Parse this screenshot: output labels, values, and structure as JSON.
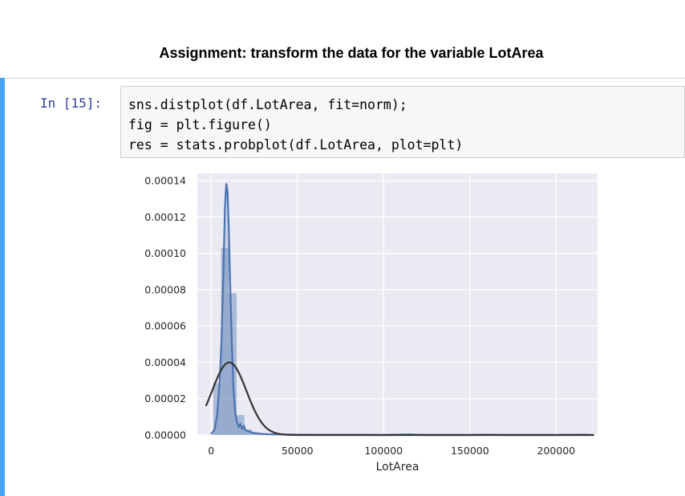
{
  "heading": "Assignment: transform the data for the variable LotArea",
  "cell": {
    "prompt": "In [15]:",
    "code_lines": [
      "sns.distplot(df.LotArea, fit=norm);",
      "fig = plt.figure()",
      "res = stats.probplot(df.LotArea, plot=plt)"
    ],
    "accent_color": "#42a5f5",
    "prompt_color": "#303f9f"
  },
  "chart_data": {
    "type": "bar",
    "title": "",
    "xlabel": "LotArea",
    "ylabel": "",
    "xlim": [
      -8000,
      224000
    ],
    "ylim": [
      0,
      0.000144
    ],
    "x_ticks": [
      0,
      50000,
      100000,
      150000,
      200000
    ],
    "x_tick_labels": [
      "0",
      "50000",
      "100000",
      "150000",
      "200000"
    ],
    "y_ticks": [
      0,
      2e-05,
      4e-05,
      6e-05,
      8e-05,
      0.0001,
      0.00012,
      0.00014
    ],
    "y_tick_labels": [
      "0.00000",
      "0.00002",
      "0.00004",
      "0.00006",
      "0.00008",
      "0.00010",
      "0.00012",
      "0.00014"
    ],
    "grid": true,
    "background": "#eaeaf2",
    "histogram": {
      "color": "#4c72b0",
      "bin_width": 4500,
      "bin_starts": [
        1300,
        5800,
        10300,
        14800,
        19300,
        23800,
        28300,
        32800,
        37300,
        41800,
        46300,
        50800,
        55300,
        59800,
        64300,
        68800,
        73300,
        77800,
        82300,
        86800,
        91300,
        95800,
        100300,
        104800,
        109300,
        113800,
        118300,
        122800,
        127300,
        131800,
        136300,
        140800,
        145300,
        149800,
        154300,
        158800,
        163300,
        167800,
        172300,
        176800,
        181300,
        185800,
        190300,
        194800,
        199300,
        203800,
        208300,
        212800
      ],
      "density": [
        2.85e-05,
        0.000103,
        7.8e-05,
        1.1e-05,
        3e-06,
        1.2e-06,
        6e-07,
        4e-07,
        3e-07,
        2e-07,
        2e-07,
        1e-07,
        1e-07,
        1e-07,
        1e-07,
        1e-07,
        1e-07,
        0.0,
        0.0,
        0.0,
        0.0,
        0.0,
        0.0,
        0.0,
        0.0,
        1e-07,
        0.0,
        0.0,
        0.0,
        0.0,
        0.0,
        0.0,
        0.0,
        0.0,
        0.0,
        1e-07,
        0.0,
        0.0,
        0.0,
        0.0,
        0.0,
        0.0,
        0.0,
        0.0,
        0.0,
        0.0,
        0.0,
        1e-07
      ]
    },
    "kde": {
      "color": "#4c72b0",
      "x": [
        0,
        2000,
        3500,
        5000,
        6000,
        7000,
        8000,
        8800,
        9500,
        10200,
        11000,
        12000,
        13000,
        14000,
        15000,
        16000,
        17000,
        18000,
        19000,
        20000,
        22000,
        24000,
        26000,
        28000,
        30000,
        35000,
        40000,
        50000,
        60000,
        80000,
        100000,
        115000,
        125000,
        150000,
        160000,
        170000,
        200000,
        215000,
        220000
      ],
      "y": [
        5e-07,
        3e-06,
        1.1e-05,
        3e-05,
        5.2e-05,
        8.5e-05,
        0.000125,
        0.0001385,
        0.000134,
        0.000115,
        8.5e-05,
        5e-05,
        2.5e-05,
        1.2e-05,
        7e-06,
        4.5e-06,
        6e-06,
        3.5e-06,
        5e-06,
        2.5e-06,
        2e-06,
        1.2e-06,
        1e-06,
        8e-07,
        5e-07,
        4e-07,
        3e-07,
        2e-07,
        1e-07,
        1e-07,
        0.0,
        3e-07,
        0.0,
        0.0,
        2e-07,
        0.0,
        0.0,
        2e-07,
        0.0
      ]
    },
    "fit": {
      "type": "norm",
      "color": "#333333",
      "mean": 10517,
      "std": 9981,
      "x_range": [
        -3000,
        222000
      ]
    }
  }
}
